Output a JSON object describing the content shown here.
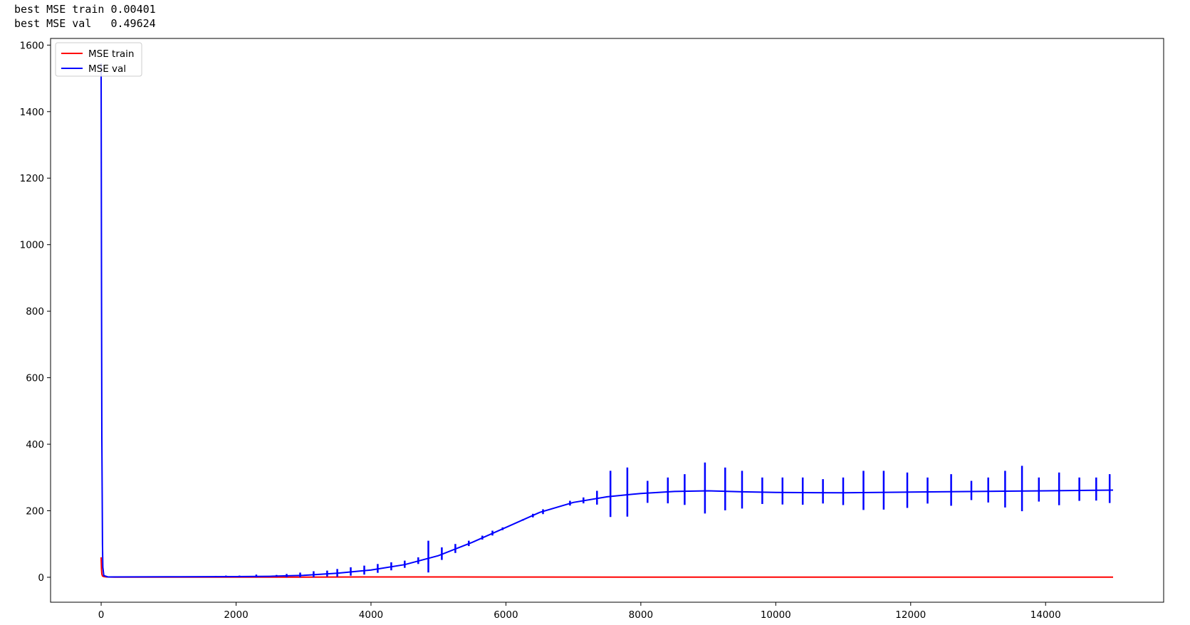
{
  "output": {
    "line1": "best MSE train 0.00401",
    "line2": "best MSE val   0.49624"
  },
  "chart_data": {
    "type": "line",
    "title": "",
    "xlabel": "",
    "ylabel": "",
    "xlim": [
      -750,
      15750
    ],
    "ylim": [
      -75,
      1620
    ],
    "xticks": [
      0,
      2000,
      4000,
      6000,
      8000,
      10000,
      12000,
      14000
    ],
    "yticks": [
      0,
      200,
      400,
      600,
      800,
      1000,
      1200,
      1400,
      1600
    ],
    "grid": false,
    "legend_position": "upper left",
    "series": [
      {
        "name": "MSE train",
        "color": "#ff0000",
        "points": [
          [
            0,
            60
          ],
          [
            5,
            25
          ],
          [
            10,
            10
          ],
          [
            20,
            4
          ],
          [
            40,
            2
          ],
          [
            80,
            1
          ],
          [
            200,
            0.5
          ],
          [
            1000,
            0.3
          ],
          [
            2000,
            0.3
          ],
          [
            3000,
            0.6
          ],
          [
            4000,
            0.9
          ],
          [
            6000,
            0.8
          ],
          [
            8000,
            0.6
          ],
          [
            10000,
            0.5
          ],
          [
            12000,
            0.4
          ],
          [
            15000,
            0.3
          ]
        ]
      },
      {
        "name": "MSE val",
        "color": "#0000ff",
        "points": [
          [
            0,
            1545
          ],
          [
            5,
            900
          ],
          [
            10,
            420
          ],
          [
            15,
            250
          ],
          [
            20,
            100
          ],
          [
            25,
            30
          ],
          [
            40,
            5
          ],
          [
            100,
            1
          ],
          [
            1000,
            1.5
          ],
          [
            2000,
            2
          ],
          [
            2500,
            3
          ],
          [
            3000,
            6
          ],
          [
            3500,
            12
          ],
          [
            4000,
            22
          ],
          [
            4500,
            38
          ],
          [
            5000,
            65
          ],
          [
            5500,
            105
          ],
          [
            6000,
            150
          ],
          [
            6500,
            195
          ],
          [
            7000,
            225
          ],
          [
            7500,
            242
          ],
          [
            8000,
            252
          ],
          [
            8500,
            258
          ],
          [
            9000,
            260
          ],
          [
            9500,
            257
          ],
          [
            10000,
            255
          ],
          [
            11000,
            254
          ],
          [
            12000,
            256
          ],
          [
            13000,
            258
          ],
          [
            14000,
            260
          ],
          [
            15000,
            262
          ]
        ],
        "spikes": [
          [
            1700,
            4
          ],
          [
            1850,
            5
          ],
          [
            2050,
            5
          ],
          [
            2300,
            8
          ],
          [
            2600,
            7
          ],
          [
            2750,
            10
          ],
          [
            2950,
            14
          ],
          [
            3150,
            18
          ],
          [
            3350,
            20
          ],
          [
            3500,
            25
          ],
          [
            3700,
            30
          ],
          [
            3900,
            35
          ],
          [
            4100,
            40
          ],
          [
            4300,
            45
          ],
          [
            4500,
            50
          ],
          [
            4700,
            60
          ],
          [
            4850,
            110
          ],
          [
            5050,
            90
          ],
          [
            5250,
            100
          ],
          [
            5450,
            110
          ],
          [
            5650,
            125
          ],
          [
            5800,
            140
          ],
          [
            5950,
            150
          ],
          [
            6100,
            160
          ],
          [
            6250,
            170
          ],
          [
            6400,
            180
          ],
          [
            6550,
            190
          ],
          [
            6750,
            210
          ],
          [
            6950,
            230
          ],
          [
            7150,
            240
          ],
          [
            7350,
            260
          ],
          [
            7550,
            320
          ],
          [
            7800,
            330
          ],
          [
            8100,
            290
          ],
          [
            8400,
            300
          ],
          [
            8650,
            310
          ],
          [
            8950,
            345
          ],
          [
            9250,
            330
          ],
          [
            9500,
            320
          ],
          [
            9800,
            300
          ],
          [
            10100,
            300
          ],
          [
            10400,
            300
          ],
          [
            10700,
            295
          ],
          [
            11000,
            300
          ],
          [
            11300,
            320
          ],
          [
            11600,
            320
          ],
          [
            11950,
            315
          ],
          [
            12250,
            300
          ],
          [
            12600,
            310
          ],
          [
            12900,
            290
          ],
          [
            13150,
            300
          ],
          [
            13400,
            320
          ],
          [
            13650,
            335
          ],
          [
            13900,
            300
          ],
          [
            14200,
            315
          ],
          [
            14500,
            300
          ],
          [
            14750,
            300
          ],
          [
            14950,
            310
          ]
        ]
      }
    ]
  }
}
